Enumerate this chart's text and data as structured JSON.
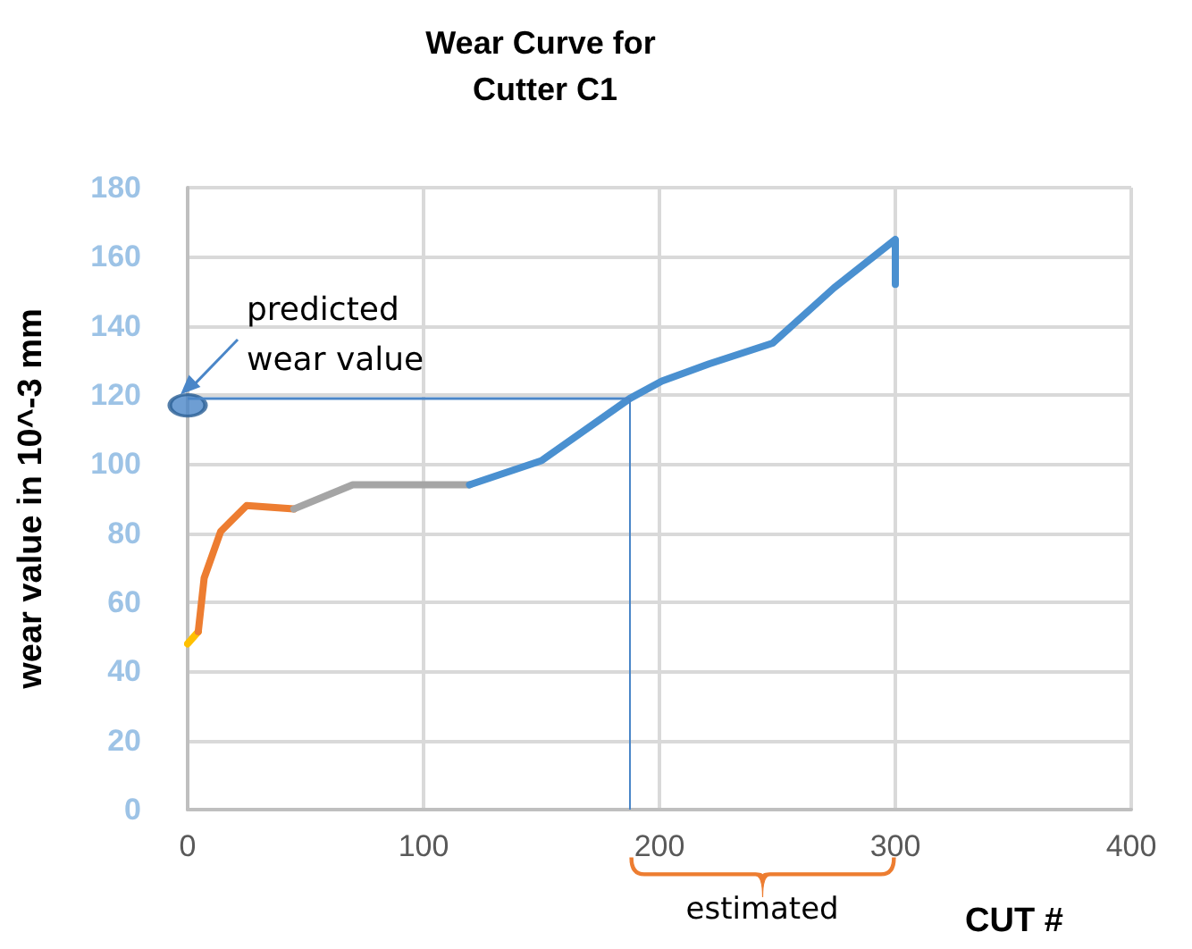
{
  "chart_data": {
    "type": "line",
    "title": "Wear Curve for Cutter C1",
    "xlabel": "CUT #",
    "ylabel": "wear value in 10^-3 mm",
    "series": [
      {
        "color": "#ffc000",
        "x": [
          0,
          4.5
        ],
        "values": [
          48,
          51.5
        ]
      },
      {
        "color": "#ed7d31",
        "x": [
          4.5,
          7,
          14,
          25,
          45
        ],
        "values": [
          51.5,
          67,
          80.5,
          88,
          87
        ]
      },
      {
        "color": "#a5a5a5",
        "x": [
          45,
          70,
          119.5
        ],
        "values": [
          87,
          94,
          94
        ]
      },
      {
        "color": "#4a90d0",
        "x": [
          119.5,
          150,
          187.5,
          201,
          221,
          248,
          274,
          300,
          300
        ],
        "values": [
          94,
          101,
          119,
          124,
          129,
          135,
          151,
          165,
          152
        ]
      },
      {
        "type": "scatter",
        "color": "#4a86c8",
        "x": [
          0
        ],
        "values": [
          117
        ]
      }
    ],
    "ref_lines": [
      {
        "axis": "y",
        "value": 119,
        "color": "#4a86c8"
      },
      {
        "axis": "x",
        "value": 187.5,
        "color": "#4a86c8"
      }
    ],
    "annotations": [
      {
        "text": "predicted wear value",
        "x": 0,
        "y": 117
      },
      "estimated"
    ],
    "xlim": [
      0,
      400
    ],
    "xticks": [
      0,
      100,
      200,
      300,
      400
    ],
    "ylim": [
      0,
      180
    ],
    "yticks": [
      0,
      20,
      40,
      60,
      80,
      100,
      120,
      140,
      160,
      180
    ],
    "grid": true,
    "line_style": "solid"
  }
}
